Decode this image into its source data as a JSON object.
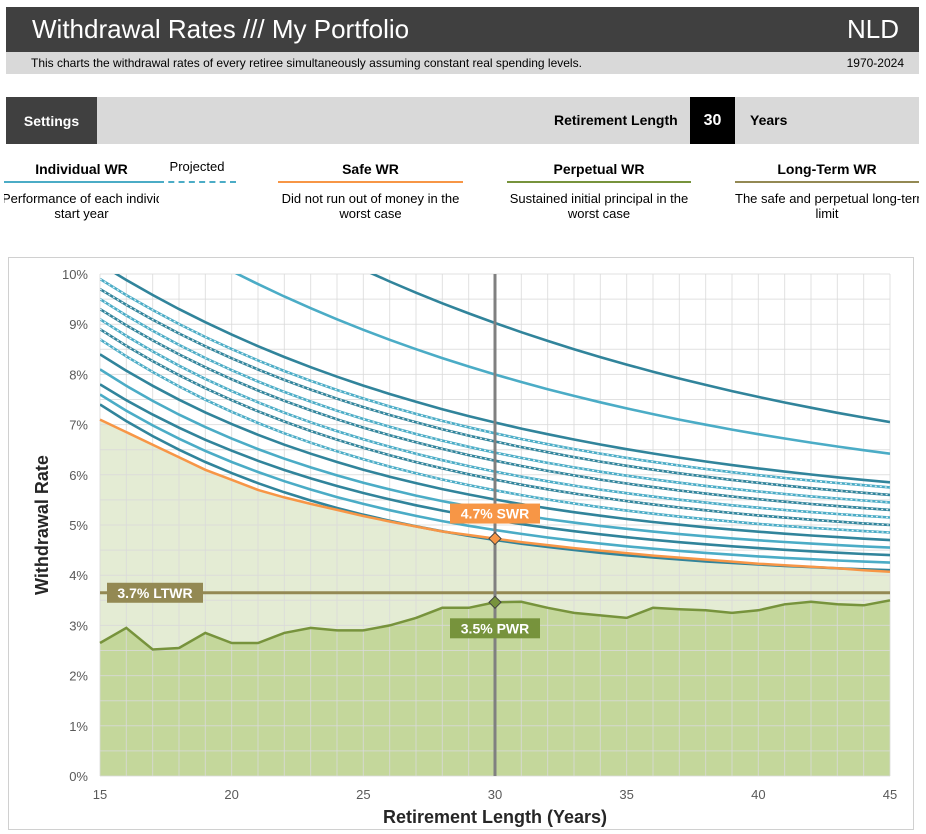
{
  "header": {
    "title": "Withdrawal Rates /// My Portfolio",
    "country": "NLD",
    "description": "This charts the withdrawal rates of every retiree simultaneously assuming constant real spending levels.",
    "period": "1970-2024"
  },
  "settings": {
    "button_label": "Settings",
    "retirement_length_label": "Retirement Length",
    "retirement_length_value": "30",
    "retirement_length_unit": "Years"
  },
  "legend": {
    "individual": {
      "title": "Individual WR",
      "projected": "Projected",
      "desc_line1": "Performance of each individual retirement",
      "desc_line2": "start year",
      "color": "#4bacc6"
    },
    "safe": {
      "title": "Safe WR",
      "desc_line1": "Did not run out of money in the",
      "desc_line2": "worst case",
      "color": "#f79646"
    },
    "perpetual": {
      "title": "Perpetual WR",
      "desc_line1": "Sustained initial principal in the",
      "desc_line2": "worst case",
      "color": "#77933c"
    },
    "longterm": {
      "title": "Long-Term WR",
      "desc_line1": "The safe and perpetual long-term",
      "desc_line2": "limit",
      "color": "#938953"
    }
  },
  "chart_data": {
    "type": "line",
    "xlabel": "Retirement Length (Years)",
    "ylabel": "Withdrawal Rate",
    "xlim": [
      15,
      45
    ],
    "ylim": [
      0,
      10
    ],
    "xticks": [
      15,
      20,
      25,
      30,
      35,
      40,
      45
    ],
    "yticks": [
      0,
      1,
      2,
      3,
      4,
      5,
      6,
      7,
      8,
      9,
      10
    ],
    "ytick_labels": [
      "0%",
      "1%",
      "2%",
      "3%",
      "4%",
      "5%",
      "6%",
      "7%",
      "8%",
      "9%",
      "10%"
    ],
    "grid": true,
    "x": [
      15,
      16,
      17,
      18,
      19,
      20,
      21,
      22,
      23,
      24,
      25,
      26,
      27,
      28,
      29,
      30,
      31,
      32,
      33,
      34,
      35,
      36,
      37,
      38,
      39,
      40,
      41,
      42,
      43,
      44,
      45
    ],
    "safe_wr": [
      7.1,
      6.85,
      6.6,
      6.35,
      6.1,
      5.9,
      5.7,
      5.55,
      5.42,
      5.3,
      5.18,
      5.07,
      4.97,
      4.87,
      4.8,
      4.73,
      4.66,
      4.6,
      4.54,
      4.49,
      4.44,
      4.39,
      4.35,
      4.31,
      4.27,
      4.23,
      4.2,
      4.17,
      4.14,
      4.1,
      4.07
    ],
    "perpetual_wr": [
      2.65,
      2.95,
      2.52,
      2.55,
      2.85,
      2.65,
      2.65,
      2.85,
      2.95,
      2.9,
      2.9,
      3.0,
      3.15,
      3.35,
      3.35,
      3.46,
      3.47,
      3.35,
      3.25,
      3.2,
      3.15,
      3.35,
      3.32,
      3.3,
      3.25,
      3.3,
      3.42,
      3.47,
      3.42,
      3.4,
      3.5
    ],
    "longterm_wr": 3.65,
    "individual_wr": [
      {
        "start": 7.4,
        "end": 4.1,
        "k": 1.0,
        "projected": false
      },
      {
        "start": 7.6,
        "end": 4.25,
        "k": 0.95,
        "projected": false
      },
      {
        "start": 7.8,
        "end": 4.4,
        "k": 0.9,
        "projected": false
      },
      {
        "start": 8.1,
        "end": 4.55,
        "k": 0.9,
        "projected": false
      },
      {
        "start": 8.4,
        "end": 4.7,
        "k": 0.85,
        "projected": false
      },
      {
        "start": 8.7,
        "end": 4.85,
        "k": 0.85,
        "projected": true
      },
      {
        "start": 8.9,
        "end": 5.0,
        "k": 0.8,
        "projected": true
      },
      {
        "start": 9.1,
        "end": 5.15,
        "k": 0.8,
        "projected": true
      },
      {
        "start": 9.3,
        "end": 5.3,
        "k": 0.75,
        "projected": true
      },
      {
        "start": 9.5,
        "end": 5.45,
        "k": 0.75,
        "projected": true
      },
      {
        "start": 9.7,
        "end": 5.6,
        "k": 0.7,
        "projected": true
      },
      {
        "start": 9.9,
        "end": 5.75,
        "k": 0.7,
        "projected": true
      },
      {
        "start": 10.2,
        "end": 5.85,
        "k": 0.65,
        "projected": false
      },
      {
        "start": 11.6,
        "end": 6.42,
        "k": 0.55,
        "projected": false
      },
      {
        "start": 13.2,
        "end": 7.05,
        "k": 0.5,
        "projected": false
      }
    ],
    "selected_x": 30,
    "annotations": {
      "swr": {
        "label": "4.7% SWR",
        "value": 4.73
      },
      "pwr": {
        "label": "3.5% PWR",
        "value": 3.46
      },
      "ltwr": {
        "label": "3.7% LTWR",
        "value": 3.65
      }
    },
    "colors": {
      "individual": "#31849b",
      "individual_light": "#4bacc6",
      "safe": "#f79646",
      "perpetual": "#77933c",
      "perpetual_fill": "#c4d79b",
      "safe_fill": "#e4ecd4",
      "longterm": "#938953",
      "marker": "#808080"
    }
  }
}
